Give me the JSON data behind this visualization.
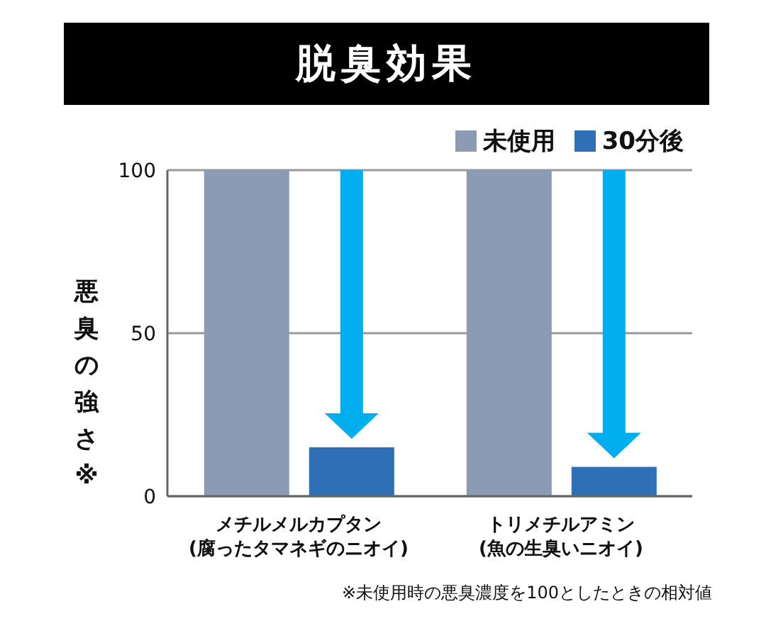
{
  "chart_data": {
    "type": "bar",
    "title": "脱臭効果",
    "ylabel": "悪臭の強さ※",
    "categories": [
      "メチルメルカプタン\n(腐ったタマネギのニオイ)",
      "トリメチルアミン\n(魚の生臭いニオイ)"
    ],
    "series": [
      {
        "name": "未使用",
        "color": "#8a9bb3",
        "values": [
          100,
          100
        ]
      },
      {
        "name": "30分後",
        "color": "#2f6fb6",
        "values": [
          15,
          9
        ]
      }
    ],
    "ylim": [
      0,
      100
    ],
    "yticks": [
      0,
      50,
      100
    ],
    "grid": "y",
    "legend": "top right",
    "annotations": [
      "※未使用時の悪臭濃度を100としたときの相対値"
    ]
  }
}
